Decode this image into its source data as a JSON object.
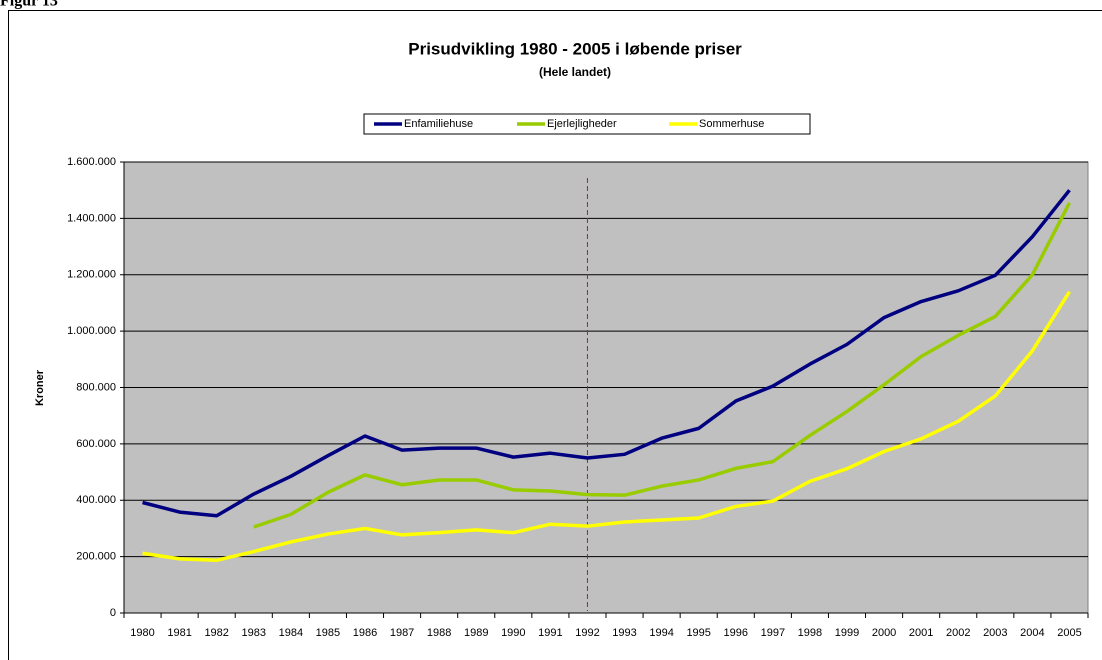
{
  "figure_label": "Figur 13",
  "chart_data": {
    "type": "line",
    "title": "Prisudvikling 1980 - 2005 i løbende priser",
    "subtitle": "(Hele landet)",
    "y_label": "Kroner",
    "categories": [
      "1980",
      "1981",
      "1982",
      "1983",
      "1984",
      "1985",
      "1986",
      "1987",
      "1988",
      "1989",
      "1990",
      "1991",
      "1992",
      "1993",
      "1994",
      "1995",
      "1996",
      "1997",
      "1998",
      "1999",
      "2000",
      "2001",
      "2002",
      "2003",
      "2004",
      "2005"
    ],
    "series": [
      {
        "name": "Enfamiliehuse",
        "color": "#000080",
        "values": [
          392000,
          358000,
          345000,
          422000,
          485000,
          558000,
          628000,
          578000,
          585000,
          585000,
          553000,
          567000,
          550000,
          563000,
          620000,
          655000,
          752000,
          805000,
          883000,
          953000,
          1048000,
          1105000,
          1143000,
          1198000,
          1335000,
          1500000
        ]
      },
      {
        "name": "Ejerlejligheder",
        "color": "#99cc00",
        "values": [
          null,
          null,
          null,
          305000,
          350000,
          428000,
          490000,
          455000,
          472000,
          472000,
          437000,
          433000,
          420000,
          418000,
          450000,
          472000,
          513000,
          537000,
          630000,
          715000,
          810000,
          910000,
          985000,
          1052000,
          1200000,
          1455000
        ]
      },
      {
        "name": "Sommerhuse",
        "color": "#ffff00",
        "values": [
          212000,
          192000,
          187000,
          218000,
          252000,
          280000,
          300000,
          277000,
          285000,
          295000,
          285000,
          315000,
          308000,
          323000,
          330000,
          337000,
          378000,
          397000,
          467000,
          512000,
          573000,
          618000,
          680000,
          770000,
          930000,
          1140000
        ]
      }
    ],
    "ylim": [
      0,
      1600000
    ],
    "yticks": [
      0,
      {
        "value": 200000,
        "label": "200.000"
      },
      {
        "value": 400000,
        "label": "400.000"
      },
      {
        "value": 600000,
        "label": "600.000"
      },
      {
        "value": 800000,
        "label": "800.000"
      },
      {
        "value": 1000000,
        "label": "1.000.000"
      },
      {
        "value": 1200000,
        "label": "1.200.000"
      },
      {
        "value": 1400000,
        "label": "1.400.000"
      },
      {
        "value": 1600000,
        "label": "1.600.000"
      }
    ],
    "grid": true,
    "legend": "top",
    "plot_background": "#c0c0c0",
    "reference_line": {
      "category": "1992",
      "color": "#ff0000"
    }
  }
}
